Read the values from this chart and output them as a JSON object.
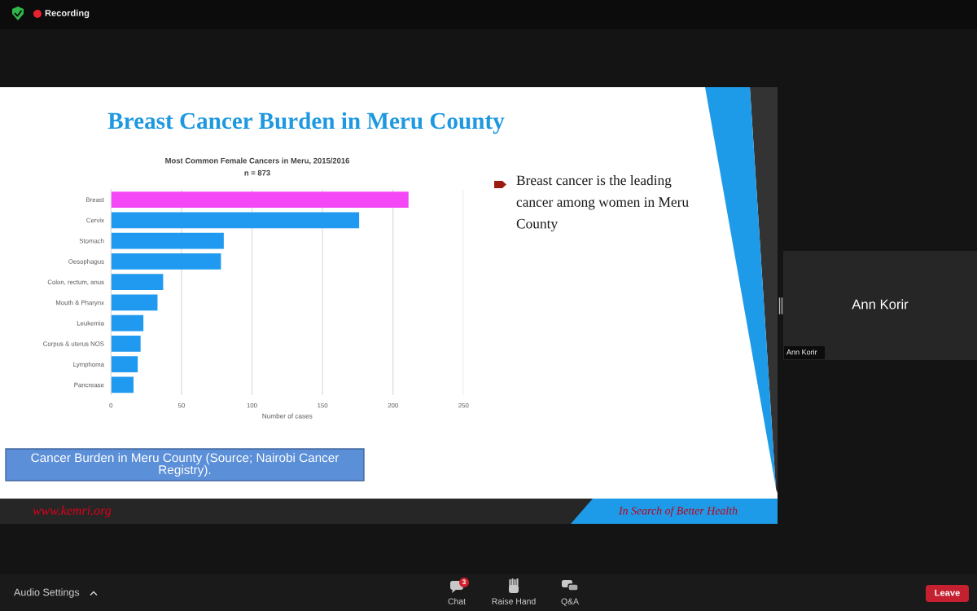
{
  "chart_data": {
    "type": "bar",
    "orientation": "horizontal",
    "title": "Most Common Female Cancers in Meru, 2015/2016",
    "subtitle": "n = 873",
    "xlabel": "Number of cases",
    "categories": [
      "Breast",
      "Cervix",
      "Stomach",
      "Oesophagus",
      "Colon, rectum, anus",
      "Mouth & Pharynx",
      "Leukemia",
      "Corpus & uterus NOS",
      "Lymphoma",
      "Pancrease"
    ],
    "values": [
      211,
      176,
      80,
      78,
      37,
      33,
      23,
      21,
      19,
      16
    ],
    "colors": [
      "#f447f5",
      "#209af0",
      "#209af0",
      "#209af0",
      "#209af0",
      "#209af0",
      "#209af0",
      "#209af0",
      "#209af0",
      "#209af0"
    ],
    "xlim": [
      0,
      250
    ],
    "xticks": [
      0,
      50,
      100,
      150,
      200,
      250
    ],
    "grid": "x",
    "annotations": [
      "Breast Cancer Burden in Meru County",
      "Breast cancer is the leading\ncancer among women in Meru\nCounty",
      "Cancer Burden in Meru County (Source; Nairobi Cancer\nRegistry).",
      "www.kemri.org",
      "In Search of Better Health",
      "Recording",
      "Ann Korir",
      "Ann Korir",
      "Audio Settings",
      "3",
      "Chat",
      "Raise Hand",
      "Q&A",
      "Leave"
    ]
  }
}
